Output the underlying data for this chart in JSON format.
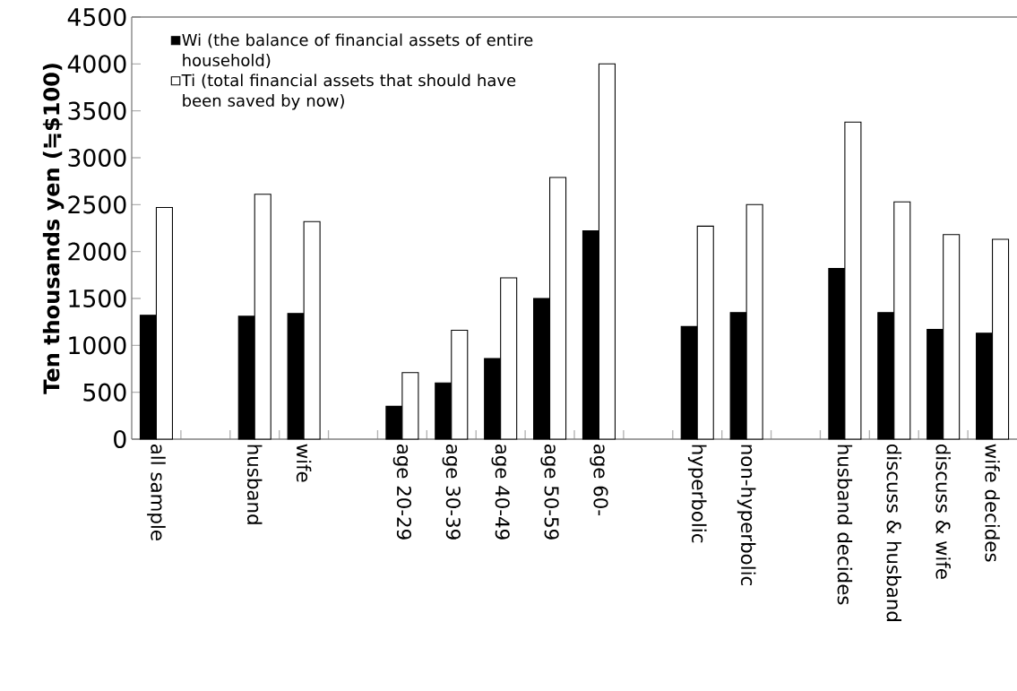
{
  "chart_data": {
    "type": "bar",
    "ylabel": "Ten thousands yen (≒$100)",
    "categories": [
      "all sample",
      null,
      "husband",
      "wife",
      null,
      "age 20-29",
      "age 30-39",
      "age 40-49",
      "age 50-59",
      "age 60-",
      null,
      "hyperbolic",
      "non-hyperbolic",
      null,
      "husband decides",
      "discuss & husband",
      "discuss & wife",
      "wife decides"
    ],
    "series": [
      {
        "name": "Wi (the balance of financial assets of entire household)",
        "color": "#000000",
        "values": [
          1320,
          null,
          1310,
          1340,
          null,
          350,
          600,
          860,
          1500,
          2220,
          null,
          1200,
          1350,
          null,
          1820,
          1350,
          1170,
          1130
        ]
      },
      {
        "name": "Ti (total financial assets that should have been saved by now)",
        "color": "#ffffff",
        "values": [
          2470,
          null,
          2610,
          2320,
          null,
          710,
          1160,
          1720,
          2790,
          4000,
          null,
          2270,
          2500,
          null,
          3380,
          2530,
          2180,
          2130
        ]
      }
    ],
    "ylim": [
      0,
      4500
    ],
    "yticks": [
      0,
      500,
      1000,
      1500,
      2000,
      2500,
      3000,
      3500,
      4000,
      4500
    ],
    "legend": "top left",
    "grid": false
  }
}
